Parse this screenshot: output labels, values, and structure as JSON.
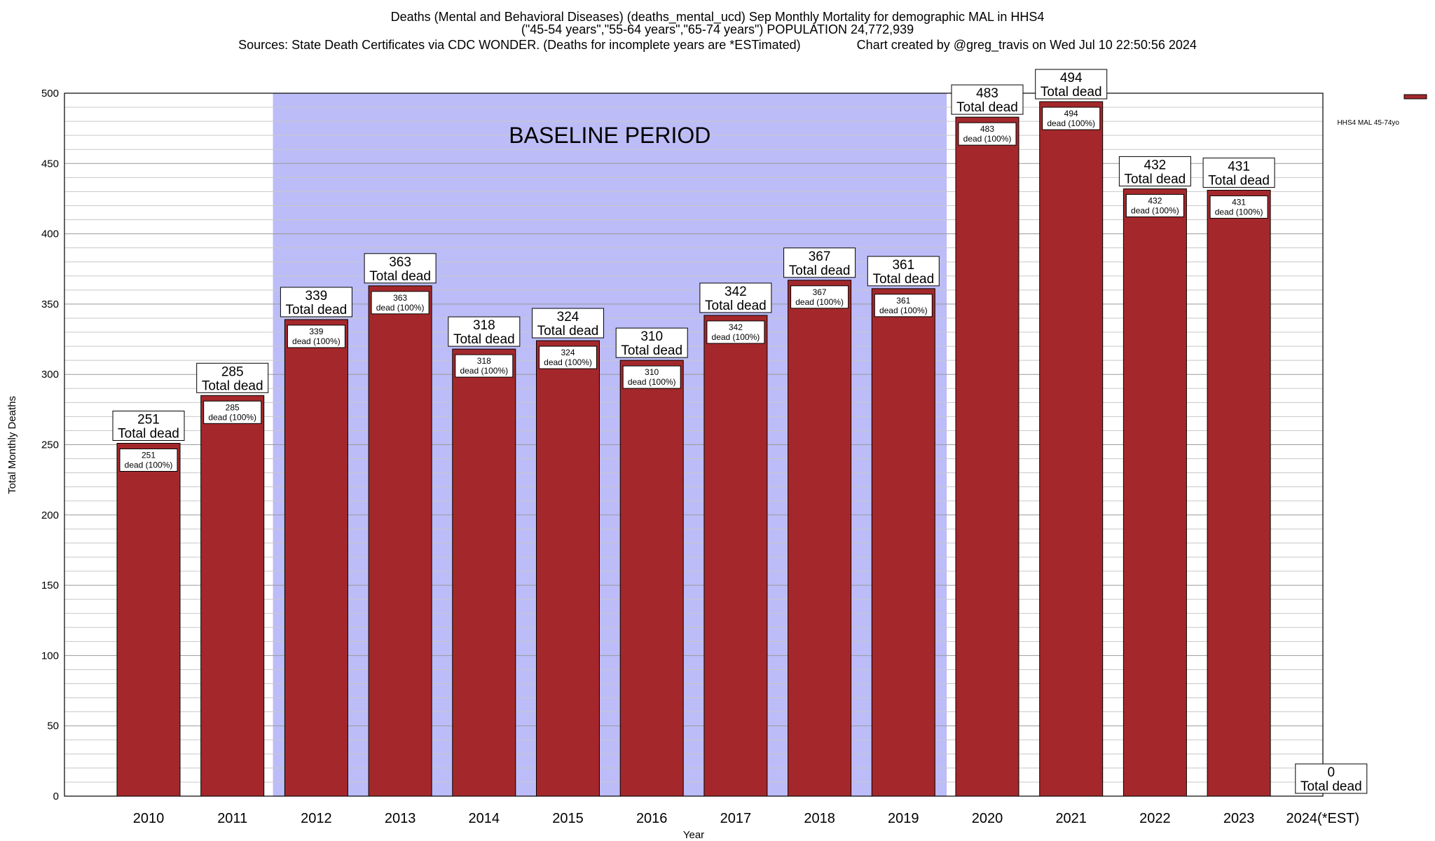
{
  "title_line1": "Deaths (Mental and Behavioral Diseases) (deaths_mental_ucd) Sep Monthly Mortality for demographic MAL in HHS4",
  "title_line2": "(\"45-54 years\",\"55-64 years\",\"65-74 years\") POPULATION 24,772,939",
  "title_line3": "Sources: State Death Certificates via CDC WONDER. (Deaths for incomplete years are *ESTimated)                Chart created by @greg_travis on Wed Jul 10 22:50:56 2024",
  "chart_data": {
    "type": "bar",
    "categories": [
      "2010",
      "2011",
      "2012",
      "2013",
      "2014",
      "2015",
      "2016",
      "2017",
      "2018",
      "2019",
      "2020",
      "2021",
      "2022",
      "2023",
      "2024(*EST)"
    ],
    "series": [
      {
        "name": "HHS4 MAL 45-74yo",
        "values": [
          251,
          285,
          339,
          363,
          318,
          324,
          310,
          342,
          367,
          361,
          483,
          494,
          432,
          431,
          0
        ]
      }
    ],
    "xlabel": "Year",
    "ylabel": "Total Monthly Deaths",
    "ylim": [
      0,
      500
    ],
    "yticks": [
      0,
      50,
      100,
      150,
      200,
      250,
      300,
      350,
      400,
      450,
      500
    ],
    "grid": true,
    "legend_position": "top-right",
    "top_label_suffix": "Total dead",
    "inner_label_suffix": "dead (100%)",
    "baseline": {
      "label": "BASELINE PERIOD",
      "from": "2012",
      "to": "2019"
    },
    "colors": {
      "bar": "#a4282b",
      "baseline": "#bcbcf8"
    }
  }
}
